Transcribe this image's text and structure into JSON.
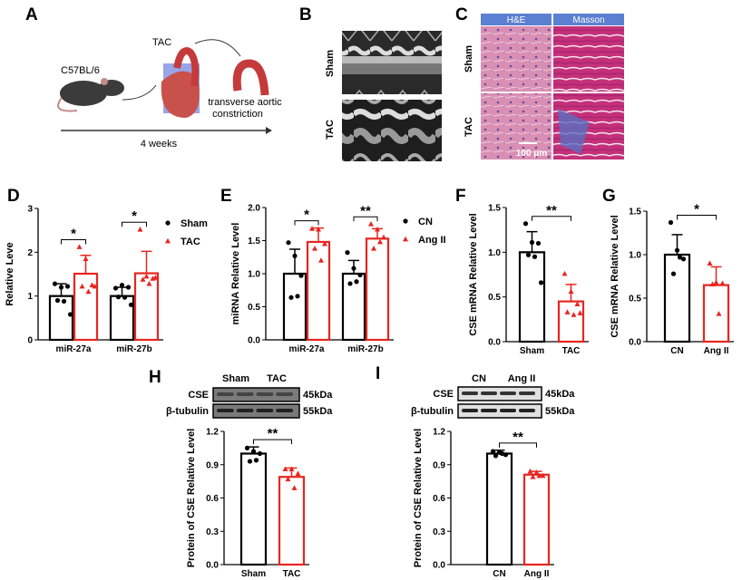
{
  "panels": {
    "A": {
      "label": "A",
      "strain": "C57BL/6",
      "procedure": "TAC",
      "result_line1": "transverse aortic",
      "result_line2": "constriction",
      "duration": "4 weeks"
    },
    "B": {
      "label": "B",
      "rows": [
        "Sham",
        "TAC"
      ]
    },
    "C": {
      "label": "C",
      "columns": [
        "H&E",
        "Masson"
      ],
      "rows": [
        "Sham",
        "TAC"
      ],
      "scale_bar": "100 μm",
      "header_color": "#5b7fd1"
    },
    "H_blot": {
      "lanes": [
        "Sham",
        "TAC"
      ],
      "bands": [
        {
          "name": "CSE",
          "size": "45kDa"
        },
        {
          "name": "β-tubulin",
          "size": "55kDa"
        }
      ]
    },
    "I_blot": {
      "lanes": [
        "CN",
        "Ang II"
      ],
      "bands": [
        {
          "name": "CSE",
          "size": "45kDa"
        },
        {
          "name": "β-tubulin",
          "size": "55kDa"
        }
      ]
    }
  },
  "colors": {
    "control": "#000000",
    "treatment": "#e8251f"
  },
  "chart_data": [
    {
      "id": "D",
      "panel_label": "D",
      "type": "bar",
      "ylabel": "Relative Leve",
      "ylim": [
        0,
        3
      ],
      "yticks": [
        "0",
        "1",
        "2",
        "3"
      ],
      "categories": [
        "miR-27a",
        "miR-27b"
      ],
      "legend": [
        "Sham",
        "TAC"
      ],
      "legend_position": "right",
      "series": [
        {
          "name": "Sham",
          "means": [
            1.0,
            1.0
          ],
          "sd": [
            0.28,
            0.2
          ],
          "points": [
            [
              1.28,
              1.2,
              1.22,
              0.9,
              0.88,
              0.58
            ],
            [
              1.18,
              1.25,
              1.2,
              0.98,
              0.97,
              0.8
            ]
          ]
        },
        {
          "name": "TAC",
          "means": [
            1.51,
            1.52
          ],
          "sd": [
            0.42,
            0.5
          ],
          "points": [
            [
              2.12,
              1.85,
              1.25,
              1.22,
              1.1,
              1.22
            ],
            [
              2.52,
              1.45,
              1.4,
              1.38,
              1.28,
              1.42
            ]
          ]
        }
      ],
      "significance": [
        "*",
        "*"
      ]
    },
    {
      "id": "E",
      "panel_label": "E",
      "type": "bar",
      "ylabel": "miRNA Relative Level",
      "ylim": [
        0,
        2
      ],
      "yticks": [
        "0.0",
        "0.5",
        "1.0",
        "1.5",
        "2.0"
      ],
      "categories": [
        "miR-27a",
        "miR-27b"
      ],
      "legend": [
        "CN",
        "Ang II"
      ],
      "legend_position": "right",
      "series": [
        {
          "name": "CN",
          "means": [
            1.0,
            1.0
          ],
          "sd": [
            0.37,
            0.2
          ],
          "points": [
            [
              1.47,
              1.27,
              0.97,
              0.64,
              0.66
            ],
            [
              1.32,
              1.08,
              0.98,
              0.85,
              0.88
            ]
          ]
        },
        {
          "name": "Ang II",
          "means": [
            1.48,
            1.53
          ],
          "sd": [
            0.21,
            0.15
          ],
          "points": [
            [
              1.68,
              1.67,
              1.45,
              1.38,
              1.2
            ],
            [
              1.75,
              1.67,
              1.55,
              1.38,
              1.48
            ]
          ]
        }
      ],
      "significance": [
        "*",
        "**"
      ]
    },
    {
      "id": "F",
      "panel_label": "F",
      "type": "bar",
      "ylabel": "CSE mRNA Relative Level",
      "ylim": [
        0,
        1.5
      ],
      "yticks": [
        "0.0",
        "0.5",
        "1.0",
        "1.5"
      ],
      "categories": [
        "Sham",
        "TAC"
      ],
      "means": [
        1.0,
        0.45
      ],
      "sd": [
        0.23,
        0.19
      ],
      "points": [
        [
          1.32,
          1.11,
          1.1,
          0.97,
          0.95,
          0.66
        ],
        [
          0.76,
          0.56,
          0.42,
          0.33,
          0.3,
          0.32
        ]
      ],
      "significance": "**"
    },
    {
      "id": "G",
      "panel_label": "G",
      "type": "bar",
      "ylabel": "CSE mRNA Relative Level",
      "ylim": [
        0,
        1.5
      ],
      "yticks": [
        "0.0",
        "0.5",
        "1.0",
        "1.5"
      ],
      "categories": [
        "CN",
        "Ang II"
      ],
      "means": [
        1.0,
        0.65
      ],
      "sd": [
        0.23,
        0.21
      ],
      "points": [
        [
          1.37,
          1.05,
          0.95,
          0.78,
          0.97
        ],
        [
          0.9,
          0.68,
          0.67,
          0.66,
          0.32
        ]
      ],
      "significance": "*"
    },
    {
      "id": "H",
      "panel_label": "H",
      "type": "bar",
      "ylabel": "Protein of CSE Relative Level",
      "ylim": [
        0,
        1.2
      ],
      "yticks": [
        "0.0",
        "0.3",
        "0.6",
        "0.9",
        "1.2"
      ],
      "categories": [
        "Sham",
        "TAC"
      ],
      "means": [
        1.0,
        0.79
      ],
      "sd": [
        0.06,
        0.08
      ],
      "points": [
        [
          1.05,
          1.02,
          1.0,
          0.93,
          0.94
        ],
        [
          0.86,
          0.86,
          0.82,
          0.77,
          0.69
        ]
      ],
      "significance": "**"
    },
    {
      "id": "I",
      "panel_label": "I",
      "type": "bar",
      "ylabel": "Protein of CSE Relative Level",
      "ylim": [
        0,
        1.2
      ],
      "yticks": [
        "0.0",
        "0.3",
        "0.6",
        "0.9",
        "1.2"
      ],
      "categories": [
        "CN",
        "Ang II"
      ],
      "means": [
        1.0,
        0.81
      ],
      "sd": [
        0.03,
        0.03
      ],
      "points": [
        [
          1.02,
          1.01,
          0.99,
          0.98,
          1.0
        ],
        [
          0.84,
          0.83,
          0.8,
          0.79,
          0.8
        ]
      ],
      "significance": "**"
    }
  ]
}
